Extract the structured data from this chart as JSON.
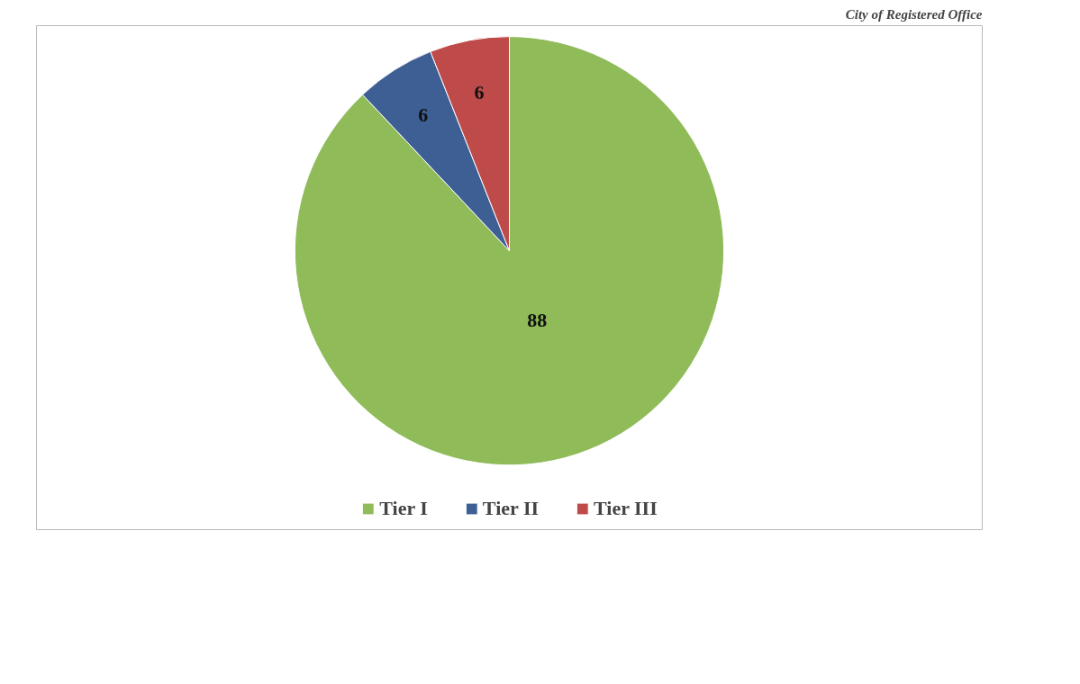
{
  "chart_data": {
    "type": "pie",
    "title": "City of Registered Office",
    "categories": [
      "Tier I",
      "Tier II",
      "Tier III"
    ],
    "values": [
      88,
      6,
      6
    ],
    "colors": [
      "#8fbb59",
      "#3d5f94",
      "#be4b4a"
    ],
    "data_labels": true,
    "legend": "bottom"
  }
}
